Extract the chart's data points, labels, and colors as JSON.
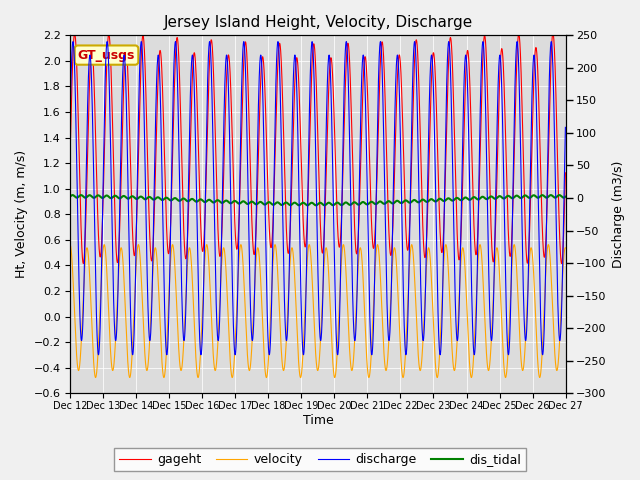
{
  "title": "Jersey Island Height, Velocity, Discharge",
  "xlabel": "Time",
  "ylabel_left": "Ht, Velocity (m, m/s)",
  "ylabel_right": "Discharge (m3/s)",
  "legend_labels": [
    "gageht",
    "velocity",
    "discharge",
    "dis_tidal"
  ],
  "legend_colors": [
    "red",
    "orange",
    "blue",
    "green"
  ],
  "gt_label": "GT_usgs",
  "xtick_labels": [
    "Dec 12",
    "Dec 13",
    "Dec 14",
    "Dec 15",
    "Dec 16",
    "Dec 17",
    "Dec 18",
    "Dec 19",
    "Dec 20",
    "Dec 21",
    "Dec 22",
    "Dec 23",
    "Dec 24",
    "Dec 25",
    "Dec 26",
    "Dec 27"
  ],
  "ylim_left": [
    -0.6,
    2.2
  ],
  "ylim_right": [
    -300,
    250
  ],
  "n_days": 15,
  "tidal_period_hours": 12.42,
  "dt_hours": 0.1,
  "background_color": "#dcdcdc",
  "fig_color": "#f0f0f0"
}
